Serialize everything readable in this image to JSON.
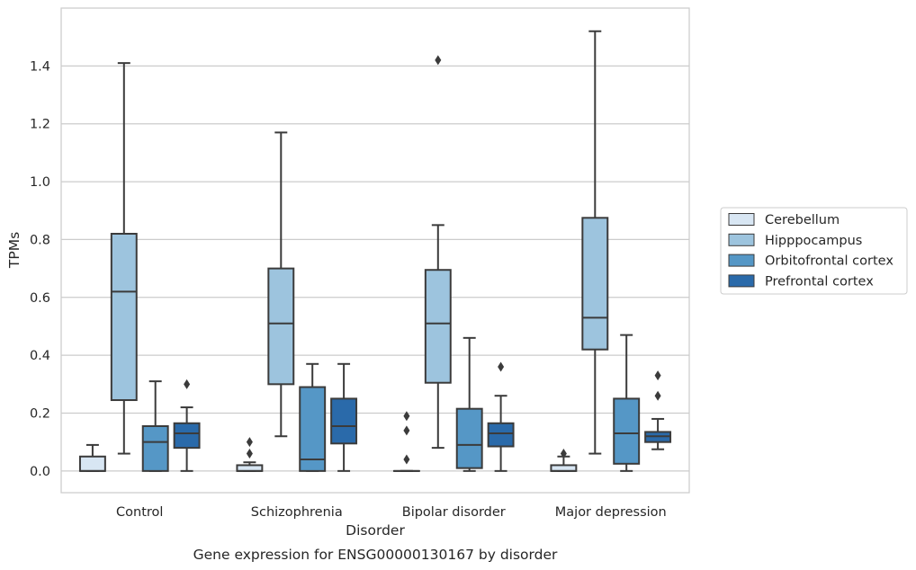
{
  "chart_data": {
    "type": "box",
    "title": "Gene expression for ENSG00000130167 by disorder",
    "xlabel": "Disorder",
    "ylabel": "TPMs",
    "ylim": [
      -0.075,
      1.6
    ],
    "yticks": [
      0.0,
      0.2,
      0.4,
      0.6,
      0.8,
      1.0,
      1.2,
      1.4
    ],
    "ytick_labels": [
      "0.0",
      "0.2",
      "0.4",
      "0.6",
      "0.8",
      "1.0",
      "1.2",
      "1.4"
    ],
    "grid": "horizontal",
    "legend_position": "right, outside plot",
    "categories": [
      "Control",
      "Schizophrenia",
      "Bipolar disorder",
      "Major depression"
    ],
    "series": [
      {
        "name": "Cerebellum",
        "color": "#d8e6f3",
        "boxes": [
          {
            "whislo": 0.0,
            "q1": 0.0,
            "med": 0.0,
            "q3": 0.05,
            "whishi": 0.09,
            "fliers": []
          },
          {
            "whislo": 0.0,
            "q1": 0.0,
            "med": 0.0,
            "q3": 0.02,
            "whishi": 0.03,
            "fliers": [
              0.06,
              0.1
            ]
          },
          {
            "whislo": 0.0,
            "q1": 0.0,
            "med": 0.0,
            "q3": 0.0,
            "whishi": 0.0,
            "fliers": [
              0.04,
              0.14,
              0.19
            ]
          },
          {
            "whislo": 0.0,
            "q1": 0.0,
            "med": 0.0,
            "q3": 0.02,
            "whishi": 0.05,
            "fliers": [
              0.06
            ]
          }
        ]
      },
      {
        "name": "Hipppocampus",
        "color": "#9dc4de",
        "boxes": [
          {
            "whislo": 0.06,
            "q1": 0.245,
            "med": 0.62,
            "q3": 0.82,
            "whishi": 1.41,
            "fliers": []
          },
          {
            "whislo": 0.12,
            "q1": 0.3,
            "med": 0.51,
            "q3": 0.7,
            "whishi": 1.17,
            "fliers": []
          },
          {
            "whislo": 0.08,
            "q1": 0.305,
            "med": 0.51,
            "q3": 0.695,
            "whishi": 0.85,
            "fliers": [
              1.42
            ]
          },
          {
            "whislo": 0.06,
            "q1": 0.42,
            "med": 0.53,
            "q3": 0.875,
            "whishi": 1.52,
            "fliers": []
          }
        ]
      },
      {
        "name": "Orbitofrontal cortex",
        "color": "#5597c6",
        "boxes": [
          {
            "whislo": 0.0,
            "q1": 0.0,
            "med": 0.1,
            "q3": 0.155,
            "whishi": 0.31,
            "fliers": []
          },
          {
            "whislo": 0.0,
            "q1": 0.0,
            "med": 0.04,
            "q3": 0.29,
            "whishi": 0.37,
            "fliers": []
          },
          {
            "whislo": 0.0,
            "q1": 0.01,
            "med": 0.09,
            "q3": 0.215,
            "whishi": 0.46,
            "fliers": []
          },
          {
            "whislo": 0.0,
            "q1": 0.025,
            "med": 0.13,
            "q3": 0.25,
            "whishi": 0.47,
            "fliers": []
          }
        ]
      },
      {
        "name": "Prefrontal cortex",
        "color": "#2a6aaa",
        "boxes": [
          {
            "whislo": 0.0,
            "q1": 0.08,
            "med": 0.13,
            "q3": 0.165,
            "whishi": 0.22,
            "fliers": [
              0.3
            ]
          },
          {
            "whislo": 0.0,
            "q1": 0.095,
            "med": 0.155,
            "q3": 0.25,
            "whishi": 0.37,
            "fliers": []
          },
          {
            "whislo": 0.0,
            "q1": 0.085,
            "med": 0.13,
            "q3": 0.165,
            "whishi": 0.26,
            "fliers": [
              0.36
            ]
          },
          {
            "whislo": 0.075,
            "q1": 0.1,
            "med": 0.12,
            "q3": 0.135,
            "whishi": 0.18,
            "fliers": [
              0.26,
              0.33
            ]
          }
        ]
      }
    ]
  }
}
